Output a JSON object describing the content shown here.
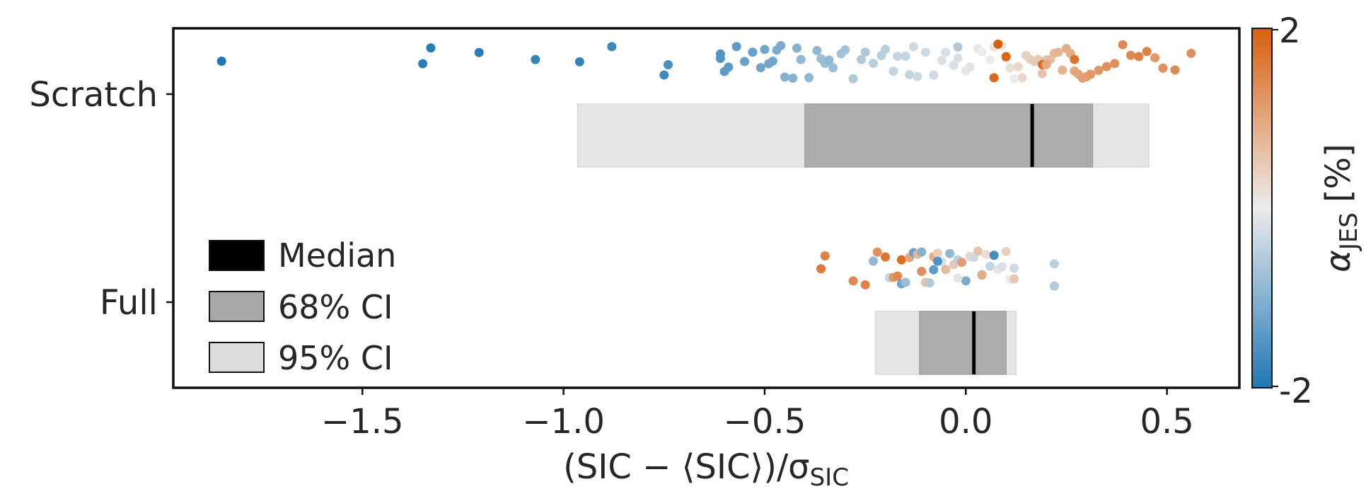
{
  "chart_data": {
    "type": "scatter",
    "title": "",
    "xlabel": "(SIC − ⟨SIC⟩)/σ",
    "xlabel_sub": "SIC",
    "xlim": [
      -1.97,
      0.68
    ],
    "x_ticks": [
      {
        "value": -1.5,
        "label": "−1.5"
      },
      {
        "value": -1.0,
        "label": "−1.0"
      },
      {
        "value": -0.5,
        "label": "−0.5"
      },
      {
        "value": 0.0,
        "label": "0.0"
      },
      {
        "value": 0.5,
        "label": "0.5"
      }
    ],
    "categories": [
      "Scratch",
      "Full"
    ],
    "colorbar": {
      "label": "α",
      "label_sub": "JES",
      "label_unit": "[%]",
      "min": -2,
      "max": 2,
      "min_label": "-2",
      "max_label": "2",
      "colors": {
        "low": "#1f77b4",
        "mid": "#ececec",
        "high": "#d95f0e"
      }
    },
    "legend": {
      "placement": "lower-left",
      "items": [
        {
          "label": "Median",
          "color": "#000000"
        },
        {
          "label": "68% CI",
          "color": "#a8a8a8"
        },
        {
          "label": "95% CI",
          "color": "#dcdcdc"
        }
      ]
    },
    "groups": [
      {
        "name": "Scratch",
        "median": 0.165,
        "ci68": [
          -0.4,
          0.315
        ],
        "ci95": [
          -0.965,
          0.455
        ],
        "points": [
          {
            "x": -1.85,
            "c": -2.0
          },
          {
            "x": -1.35,
            "c": -1.9
          },
          {
            "x": -1.33,
            "c": -1.9
          },
          {
            "x": -1.21,
            "c": -1.9
          },
          {
            "x": -1.07,
            "c": -1.8
          },
          {
            "x": -0.96,
            "c": -1.8
          },
          {
            "x": -0.88,
            "c": -1.7
          },
          {
            "x": -0.75,
            "c": -1.7
          },
          {
            "x": -0.74,
            "c": -1.6
          },
          {
            "x": -0.61,
            "c": -1.5
          },
          {
            "x": -0.61,
            "c": -1.5
          },
          {
            "x": -0.6,
            "c": -1.4
          },
          {
            "x": -0.59,
            "c": -1.4
          },
          {
            "x": -0.57,
            "c": -1.4
          },
          {
            "x": -0.55,
            "c": -1.3
          },
          {
            "x": -0.53,
            "c": -1.3
          },
          {
            "x": -0.51,
            "c": -1.2
          },
          {
            "x": -0.5,
            "c": -1.2
          },
          {
            "x": -0.49,
            "c": -1.2
          },
          {
            "x": -0.48,
            "c": -1.2
          },
          {
            "x": -0.47,
            "c": -1.1
          },
          {
            "x": -0.46,
            "c": -1.1
          },
          {
            "x": -0.45,
            "c": -1.0
          },
          {
            "x": -0.43,
            "c": -1.0
          },
          {
            "x": -0.42,
            "c": -1.0
          },
          {
            "x": -0.41,
            "c": -0.9
          },
          {
            "x": -0.39,
            "c": -0.9
          },
          {
            "x": -0.37,
            "c": -0.9
          },
          {
            "x": -0.36,
            "c": -0.8
          },
          {
            "x": -0.35,
            "c": -0.8
          },
          {
            "x": -0.33,
            "c": -0.8
          },
          {
            "x": -0.31,
            "c": -0.7
          },
          {
            "x": -0.3,
            "c": -0.7
          },
          {
            "x": -0.28,
            "c": -0.6
          },
          {
            "x": -0.26,
            "c": -0.6
          },
          {
            "x": -0.25,
            "c": -0.6
          },
          {
            "x": -0.23,
            "c": -0.5
          },
          {
            "x": -0.21,
            "c": -0.5
          },
          {
            "x": -0.2,
            "c": -0.5
          },
          {
            "x": -0.18,
            "c": -0.4
          },
          {
            "x": -0.17,
            "c": -0.4
          },
          {
            "x": -0.15,
            "c": -0.4
          },
          {
            "x": -0.13,
            "c": -0.3
          },
          {
            "x": -0.12,
            "c": -0.3
          },
          {
            "x": -0.1,
            "c": -0.3
          },
          {
            "x": -0.08,
            "c": -0.3
          },
          {
            "x": -0.06,
            "c": -0.2
          },
          {
            "x": -0.05,
            "c": -0.2
          },
          {
            "x": -0.03,
            "c": -0.2
          },
          {
            "x": -0.02,
            "c": -0.2
          },
          {
            "x": 0.0,
            "c": -0.1
          },
          {
            "x": 0.01,
            "c": -0.1
          },
          {
            "x": 0.03,
            "c": -0.1
          },
          {
            "x": 0.04,
            "c": 0.0
          },
          {
            "x": 0.06,
            "c": 0.0
          },
          {
            "x": 0.07,
            "c": 0.1
          },
          {
            "x": 0.09,
            "c": 0.1
          },
          {
            "x": 0.1,
            "c": 0.2
          },
          {
            "x": 0.11,
            "c": 0.2
          },
          {
            "x": 0.13,
            "c": 0.3
          },
          {
            "x": 0.14,
            "c": 0.3
          },
          {
            "x": 0.15,
            "c": 0.4
          },
          {
            "x": 0.16,
            "c": 0.4
          },
          {
            "x": 0.17,
            "c": 0.5
          },
          {
            "x": 0.18,
            "c": 0.5
          },
          {
            "x": 0.19,
            "c": 0.6
          },
          {
            "x": 0.2,
            "c": 0.6
          },
          {
            "x": 0.21,
            "c": 0.7
          },
          {
            "x": 0.22,
            "c": 0.7
          },
          {
            "x": 0.23,
            "c": 0.8
          },
          {
            "x": 0.24,
            "c": 0.8
          },
          {
            "x": 0.25,
            "c": 0.9
          },
          {
            "x": 0.26,
            "c": 0.9
          },
          {
            "x": 0.27,
            "c": 1.0
          },
          {
            "x": 0.28,
            "c": 1.0
          },
          {
            "x": 0.29,
            "c": 1.1
          },
          {
            "x": 0.3,
            "c": 1.1
          },
          {
            "x": 0.31,
            "c": 1.2
          },
          {
            "x": 0.33,
            "c": 1.2
          },
          {
            "x": 0.35,
            "c": 1.3
          },
          {
            "x": 0.37,
            "c": 1.3
          },
          {
            "x": 0.39,
            "c": 1.4
          },
          {
            "x": 0.41,
            "c": 1.4
          },
          {
            "x": 0.43,
            "c": 1.5
          },
          {
            "x": 0.45,
            "c": 1.5
          },
          {
            "x": 0.47,
            "c": 1.2
          },
          {
            "x": 0.49,
            "c": 1.3
          },
          {
            "x": 0.52,
            "c": 1.4
          },
          {
            "x": 0.56,
            "c": 1.3
          },
          {
            "x": 0.07,
            "c": 1.9
          },
          {
            "x": 0.08,
            "c": 2.0
          },
          {
            "x": 0.1,
            "c": 1.9
          },
          {
            "x": 0.19,
            "c": 1.8
          },
          {
            "x": 0.27,
            "c": 1.7
          },
          {
            "x": -0.02,
            "c": -0.6
          },
          {
            "x": 0.12,
            "c": 0.0
          },
          {
            "x": -0.34,
            "c": -0.9
          },
          {
            "x": -0.14,
            "c": -0.4
          },
          {
            "x": 0.2,
            "c": 1.0
          }
        ]
      },
      {
        "name": "Full",
        "median": 0.02,
        "ci68": [
          -0.115,
          0.1
        ],
        "ci95": [
          -0.225,
          0.125
        ],
        "points": [
          {
            "x": -0.36,
            "c": 1.6
          },
          {
            "x": -0.35,
            "c": 1.5
          },
          {
            "x": -0.28,
            "c": 1.4
          },
          {
            "x": -0.25,
            "c": 1.5
          },
          {
            "x": -0.23,
            "c": -0.9
          },
          {
            "x": -0.22,
            "c": 1.3
          },
          {
            "x": -0.2,
            "c": 1.7
          },
          {
            "x": -0.19,
            "c": -0.4
          },
          {
            "x": -0.18,
            "c": 1.2
          },
          {
            "x": -0.17,
            "c": 1.4
          },
          {
            "x": -0.16,
            "c": -1.2
          },
          {
            "x": -0.16,
            "c": 1.8
          },
          {
            "x": -0.15,
            "c": -0.8
          },
          {
            "x": -0.14,
            "c": 1.0
          },
          {
            "x": -0.13,
            "c": -1.3
          },
          {
            "x": -0.12,
            "c": 0.8
          },
          {
            "x": -0.11,
            "c": -1.0
          },
          {
            "x": -0.11,
            "c": 1.3
          },
          {
            "x": -0.1,
            "c": 0.6
          },
          {
            "x": -0.09,
            "c": -0.6
          },
          {
            "x": -0.08,
            "c": 0.9
          },
          {
            "x": -0.08,
            "c": -1.4
          },
          {
            "x": -0.07,
            "c": 0.4
          },
          {
            "x": -0.06,
            "c": -0.2
          },
          {
            "x": -0.05,
            "c": 0.7
          },
          {
            "x": -0.04,
            "c": -0.9
          },
          {
            "x": -0.03,
            "c": 0.5
          },
          {
            "x": -0.02,
            "c": -0.5
          },
          {
            "x": -0.01,
            "c": 1.1
          },
          {
            "x": 0.0,
            "c": -1.1
          },
          {
            "x": 0.01,
            "c": 0.3
          },
          {
            "x": 0.02,
            "c": -0.3
          },
          {
            "x": 0.03,
            "c": 0.6
          },
          {
            "x": 0.04,
            "c": -0.7
          },
          {
            "x": 0.05,
            "c": 0.2
          },
          {
            "x": 0.06,
            "c": -0.4
          },
          {
            "x": 0.07,
            "c": -1.6
          },
          {
            "x": 0.08,
            "c": 0.1
          },
          {
            "x": 0.09,
            "c": -0.2
          },
          {
            "x": 0.1,
            "c": 0.4
          },
          {
            "x": 0.11,
            "c": 0.0
          },
          {
            "x": 0.12,
            "c": -0.3
          },
          {
            "x": 0.12,
            "c": 0.5
          },
          {
            "x": 0.22,
            "c": -0.5
          },
          {
            "x": 0.22,
            "c": -0.6
          },
          {
            "x": -0.02,
            "c": -0.1
          },
          {
            "x": 0.04,
            "c": 0.9
          },
          {
            "x": -0.07,
            "c": -1.5
          }
        ]
      }
    ]
  }
}
